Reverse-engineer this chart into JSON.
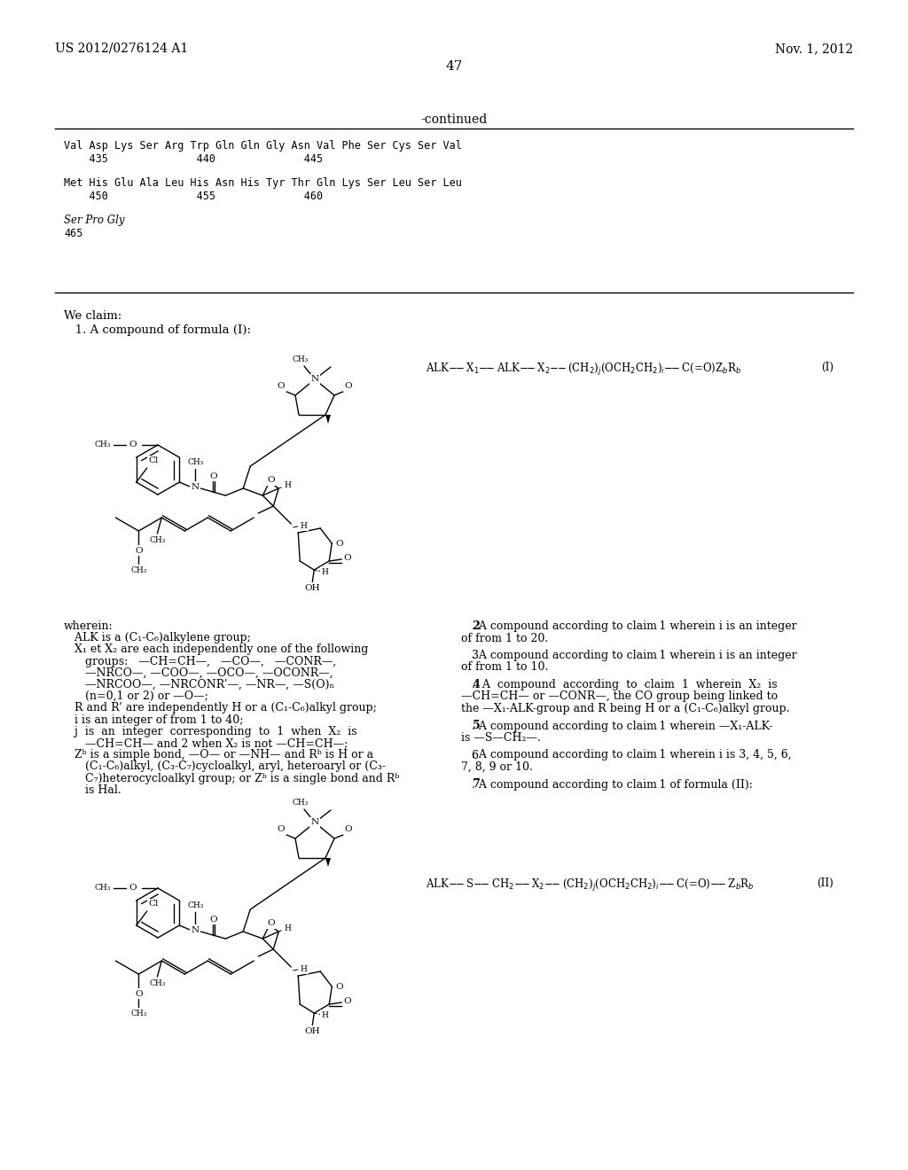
{
  "bg": "#ffffff",
  "header_left": "US 2012/0276124 A1",
  "header_right": "Nov. 1, 2012",
  "page_num": "47",
  "continued": "-continued",
  "seq_line1a": "Val Asp Lys Ser Arg Trp Gln Gln Gly Asn Val Phe Ser Cys Ser Val",
  "seq_line1b": "    435              440              445",
  "seq_line2a": "Met His Glu Ala Leu His Asn His Tyr Thr Gln Lys Ser Leu Ser Leu",
  "seq_line2b": "    450              455              460",
  "seq_line3a": "Ser Pro Gly",
  "seq_line3b": "465",
  "claim_header": "We claim:",
  "claim1": "   1. A compound of formula (I):",
  "claim7": "   7. A compound according to claim   1 of formula (II):",
  "formula_I": "ALK—X₁—ALK—X₂—(CH₂)ⱼ(OCH₂CH₂)ᵢ—C(=O)ZᵇRᵇ",
  "formula_II": "ALK—S—CH₂—X₂—(CH₂)ⱼ(OCH₂CH₂)ᵢ—C(═O)—ZᵇRᵇ",
  "wherein": [
    "wherein:",
    "   ALK is a (C₁-C₆)alkylene group;",
    "   X₁ et X₂ are each independently one of the following",
    "      groups:   —CH=CH—,   —CO—,   —CONR—,",
    "      —NRCO—, —COO—, —OCO—, —OCONR—,",
    "      —NRCOO—, —NRCONR’—, —NR—, —S(O)ₙ",
    "      (n=0,1 or 2) or —O—;",
    "   R and R’ are independently H or a (C₁-C₆)alkyl group;",
    "   i is an integer of from 1 to 40;",
    "   j  is  an  integer  corresponding  to  1  when  X₂  is",
    "      —CH=CH— and 2 when X₂ is not —CH=CH—;",
    "   Zᵇ is a simple bond, —O— or —NH— and Rᵇ is H or a",
    "      (C₁-C₆)alkyl, (C₃-C₇)cycloalkyl, aryl, heteroaryl or (C₃-",
    "      C₇)heterocycloalkyl group; or Zᵇ is a single bond and Rᵇ",
    "      is Hal."
  ],
  "claims_right": [
    [
      "2",
      true,
      ". A compound according to claim 1 wherein i is an integer\nof from 1 to 20."
    ],
    [
      "3",
      false,
      ". A compound according to claim 1 wherein i is an integer\nof from 1 to 10."
    ],
    [
      "4",
      true,
      ".  A  compound  according  to  claim  1  wherein  X₂  is\n—CH=CH— or —CONR—, the CO group being linked to\nthe —X₁-ALK-group and R being H or a (C₁-C₆)alkyl group."
    ],
    [
      "5",
      true,
      ". A compound according to claim 1 wherein —X₁-ALK-\nis —S—CH₂—."
    ],
    [
      "6",
      false,
      ". A compound according to claim 1 wherein i is 3, 4, 5, 6,\n7, 8, 9 or 10."
    ],
    [
      "7",
      true,
      ". A compound according to claim 1 of formula (II):"
    ]
  ]
}
